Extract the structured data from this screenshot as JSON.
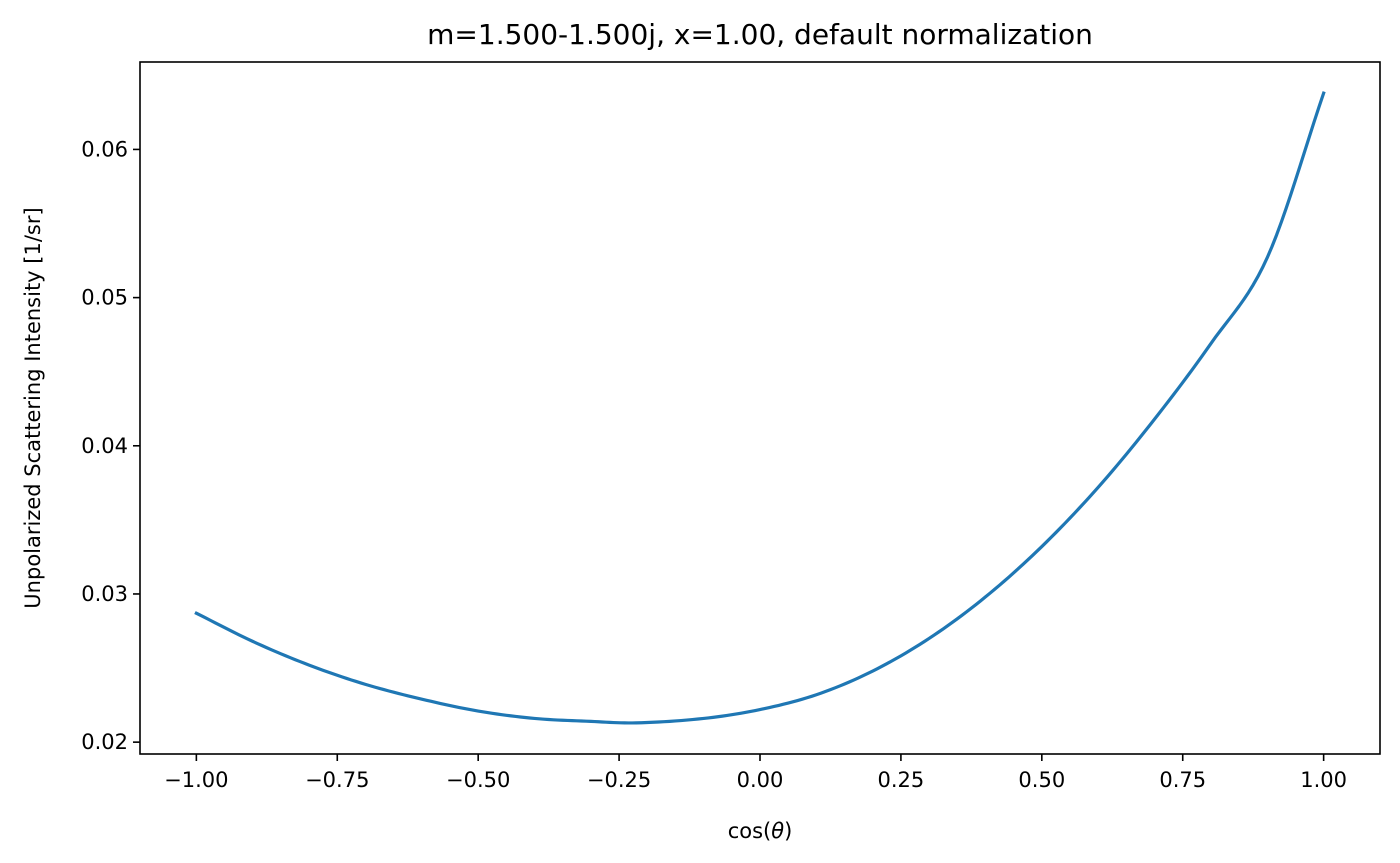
{
  "chart_data": {
    "type": "line",
    "title": "m=1.500-1.500j, x=1.00, default normalization",
    "xlabel_prefix": "cos(",
    "xlabel_symbol": "θ",
    "xlabel_suffix": ")",
    "ylabel": "Unpolarized Scattering Intensity [1/sr]",
    "xlim": [
      -1.1,
      1.1
    ],
    "ylim": [
      0.0192,
      0.0659
    ],
    "xticks": [
      -1.0,
      -0.75,
      -0.5,
      -0.25,
      0.0,
      0.25,
      0.5,
      0.75,
      1.0
    ],
    "xtick_labels": [
      "−1.00",
      "−0.75",
      "−0.50",
      "−0.25",
      "0.00",
      "0.25",
      "0.50",
      "0.75",
      "1.00"
    ],
    "yticks": [
      0.02,
      0.03,
      0.04,
      0.05,
      0.06
    ],
    "ytick_labels": [
      "0.02",
      "0.03",
      "0.04",
      "0.05",
      "0.06"
    ],
    "grid": false,
    "series": [
      {
        "color": "#1f77b4",
        "x": [
          -1.0,
          -0.9,
          -0.8,
          -0.7,
          -0.6,
          -0.5,
          -0.4,
          -0.3,
          -0.22,
          -0.1,
          0.0,
          0.1,
          0.2,
          0.3,
          0.4,
          0.5,
          0.6,
          0.7,
          0.8,
          0.9,
          1.0
        ],
        "y": [
          0.0287,
          0.0268,
          0.0252,
          0.0239,
          0.0229,
          0.0221,
          0.0216,
          0.0214,
          0.0213,
          0.0216,
          0.0222,
          0.0232,
          0.0248,
          0.027,
          0.0298,
          0.0332,
          0.0372,
          0.0418,
          0.0469,
          0.0527,
          0.0638
        ]
      }
    ]
  }
}
